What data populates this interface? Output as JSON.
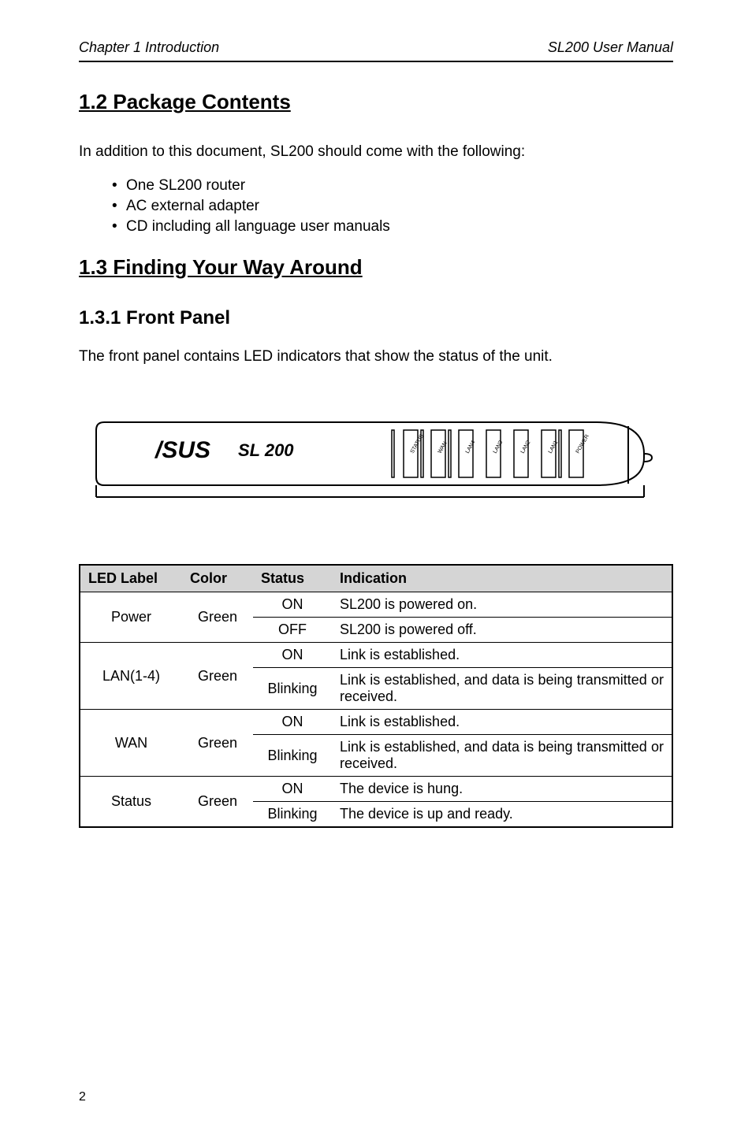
{
  "header": {
    "left": "Chapter 1 Introduction",
    "right": "SL200 User Manual"
  },
  "section_1_2": {
    "title": "1.2 Package Contents",
    "intro": "In addition to this document, SL200 should come with the following:",
    "bullets": [
      "One SL200 router",
      "AC external adapter",
      "CD including all language user manuals"
    ]
  },
  "section_1_3": {
    "title": "1.3 Finding Your Way Around",
    "sub_1_3_1": {
      "title": "1.3.1 Front Panel",
      "text": "The front panel contains LED indicators that show the status of the unit."
    }
  },
  "router": {
    "brand_text": "SL 200",
    "led_labels": [
      "STATUS",
      "WAN",
      "LAN4",
      "LAN3",
      "LAN2",
      "LAN1",
      "POWER"
    ]
  },
  "table": {
    "headers": [
      "LED  Label",
      "Color",
      "Status",
      "Indication"
    ],
    "rows": [
      {
        "label": "Power",
        "color": "Green",
        "variants": [
          {
            "status": "ON",
            "indication": "SL200 is powered on."
          },
          {
            "status": "OFF",
            "indication": "SL200 is powered off."
          }
        ]
      },
      {
        "label": "LAN(1-4)",
        "color": "Green",
        "variants": [
          {
            "status": "ON",
            "indication": "Link is established."
          },
          {
            "status": "Blinking",
            "indication": "Link is established, and data is being transmitted or received."
          }
        ]
      },
      {
        "label": "WAN",
        "color": "Green",
        "variants": [
          {
            "status": "ON",
            "indication": "Link is established."
          },
          {
            "status": "Blinking",
            "indication": "Link is established, and data is being transmitted or received."
          }
        ]
      },
      {
        "label": "Status",
        "color": "Green",
        "variants": [
          {
            "status": "ON",
            "indication": "The device is hung."
          },
          {
            "status": "Blinking",
            "indication": "The device is up and ready."
          }
        ]
      }
    ]
  },
  "page_number": "2"
}
